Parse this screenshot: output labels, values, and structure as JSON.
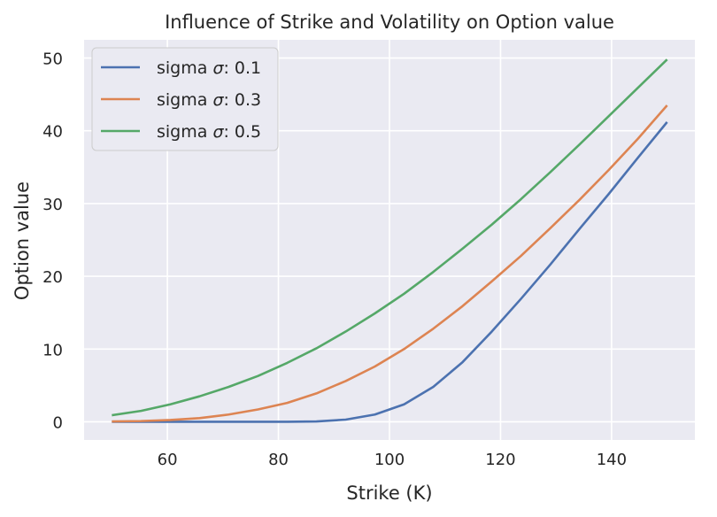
{
  "chart_data": {
    "type": "line",
    "title": "Influence of Strike and Volatility on Option value",
    "xlabel": "Strike (K)",
    "ylabel": "Option value",
    "xlim": [
      45,
      155
    ],
    "ylim": [
      -2.5,
      52.5
    ],
    "xticks": [
      60,
      80,
      100,
      120,
      140
    ],
    "yticks": [
      0,
      10,
      20,
      30,
      40,
      50
    ],
    "grid": true,
    "legend_position": "top-left",
    "colors": {
      "background": "#eaeaf2",
      "grid": "#ffffff"
    },
    "legend_prefix": "sigma ",
    "sigma_symbol": "σ",
    "x": [
      50,
      55.26,
      60.53,
      65.79,
      71.05,
      76.32,
      81.58,
      86.84,
      92.11,
      97.37,
      102.63,
      107.89,
      113.16,
      118.42,
      123.68,
      128.95,
      134.21,
      139.47,
      144.74,
      150
    ],
    "series": [
      {
        "name": ": 0.1",
        "color": "#4c72b0",
        "values": [
          0,
          0,
          0,
          0,
          0,
          0,
          0,
          0.05,
          0.3,
          1.0,
          2.4,
          4.8,
          8.2,
          12.4,
          16.9,
          21.6,
          26.5,
          31.3,
          36.3,
          41.2
        ]
      },
      {
        "name": ": 0.3",
        "color": "#dd8452",
        "values": [
          0.05,
          0.1,
          0.25,
          0.5,
          1.0,
          1.7,
          2.6,
          3.9,
          5.6,
          7.6,
          10.0,
          12.8,
          15.9,
          19.3,
          22.8,
          26.6,
          30.5,
          34.6,
          38.9,
          43.5
        ]
      },
      {
        "name": ": 0.5",
        "color": "#55a868",
        "values": [
          0.9,
          1.5,
          2.4,
          3.5,
          4.8,
          6.3,
          8.1,
          10.1,
          12.4,
          14.9,
          17.6,
          20.6,
          23.8,
          27.1,
          30.6,
          34.3,
          38.1,
          42.0,
          45.9,
          49.8
        ]
      }
    ]
  }
}
